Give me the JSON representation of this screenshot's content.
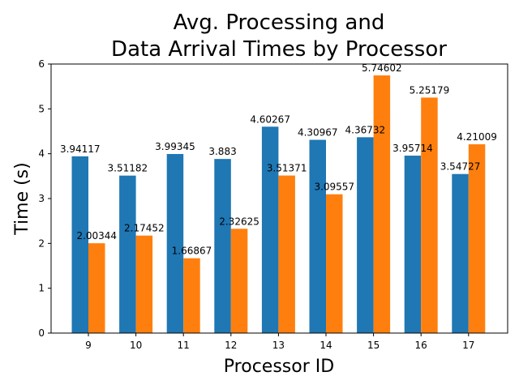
{
  "chart_data": {
    "type": "bar",
    "title_lines": [
      "Avg. Processing and",
      "Data Arrival Times by Processor"
    ],
    "xlabel": "Processor ID",
    "ylabel": "Time (s)",
    "categories": [
      "9",
      "10",
      "11",
      "12",
      "13",
      "14",
      "15",
      "16",
      "17"
    ],
    "ylim": [
      0,
      6
    ],
    "yticks": [
      "0",
      "1",
      "2",
      "3",
      "4",
      "5",
      "6"
    ],
    "grid": false,
    "legend": "none",
    "series": [
      {
        "color": "#1f77b4",
        "values": [
          3.94117,
          3.51182,
          3.99345,
          3.883,
          4.60267,
          4.30967,
          4.36732,
          3.95714,
          3.54727
        ],
        "labels": [
          "3.94117",
          "3.51182",
          "3.99345",
          "3.883",
          "4.60267",
          "4.30967",
          "4.36732",
          "3.95714",
          "3.54727"
        ]
      },
      {
        "color": "#ff7f0e",
        "values": [
          2.00344,
          2.17452,
          1.66867,
          2.32625,
          3.51371,
          3.09557,
          5.74602,
          5.25179,
          4.21009
        ],
        "labels": [
          "2.00344",
          "2.17452",
          "1.66867",
          "2.32625",
          "3.51371",
          "3.09557",
          "5.74602",
          "5.25179",
          "4.21009"
        ]
      }
    ]
  }
}
